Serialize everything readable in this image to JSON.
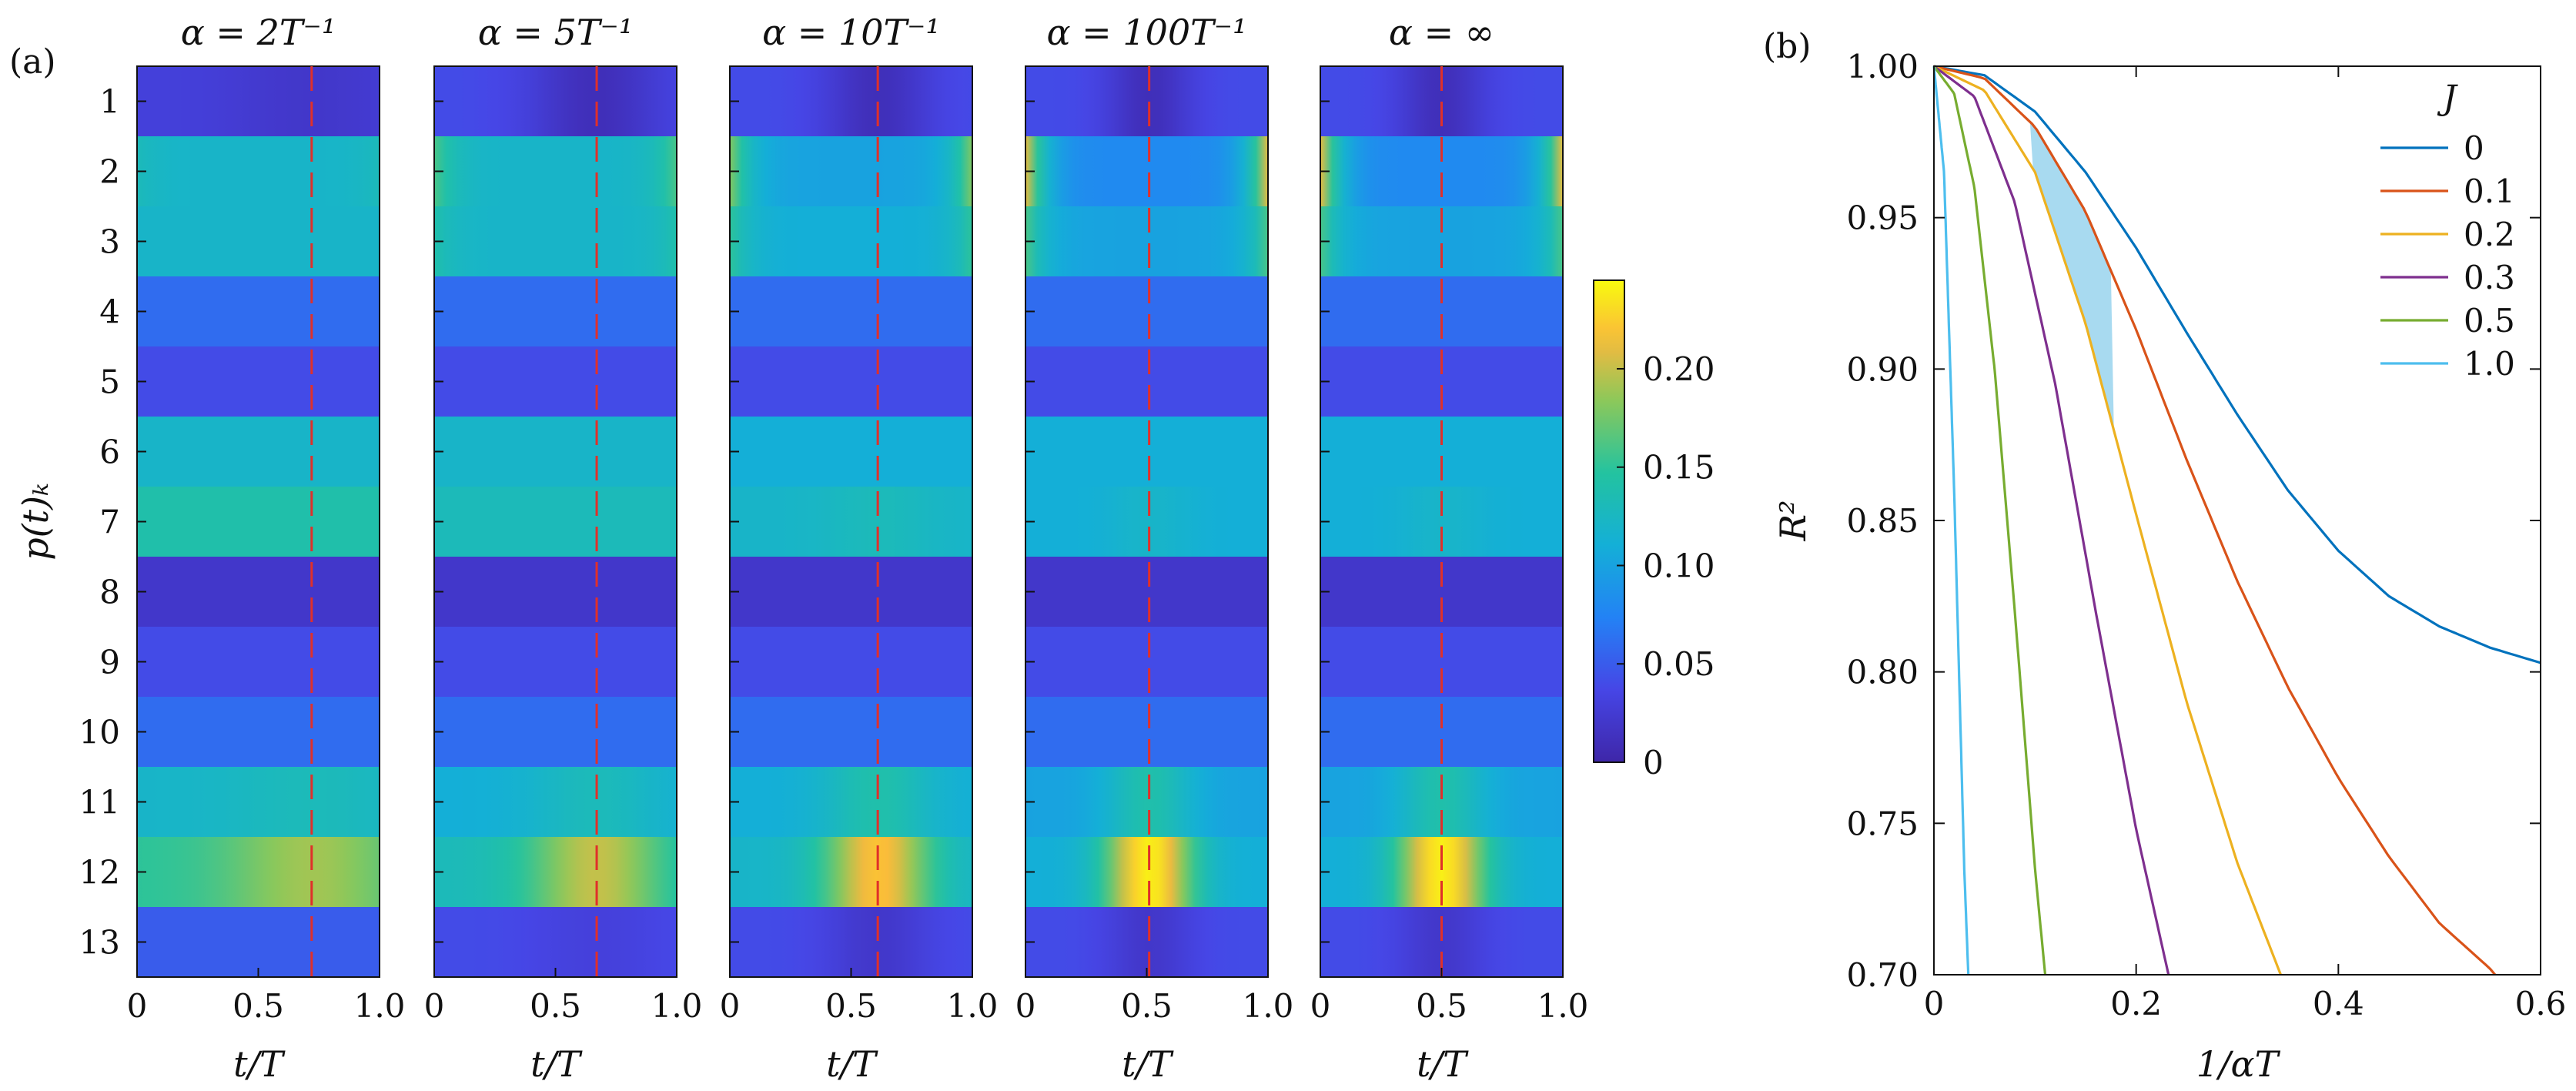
{
  "panel_labels": {
    "a": "(a)",
    "b": "(b)"
  },
  "chart_data": [
    {
      "type": "heatmap",
      "panel": "(a)",
      "title": "α = 2T⁻¹",
      "xlabel": "t/T",
      "ylabel": "p(t)ₖ",
      "xticks": [
        "0",
        "0.5",
        "1.0"
      ],
      "yticks": [
        "1",
        "2",
        "3",
        "4",
        "5",
        "6",
        "7",
        "8",
        "9",
        "10",
        "11",
        "12",
        "13"
      ],
      "dashed_line_x": 0.72,
      "row_base": [
        0.03,
        0.12,
        0.12,
        0.06,
        0.04,
        0.12,
        0.14,
        0.02,
        0.04,
        0.06,
        0.12,
        0.15,
        0.05
      ],
      "row_amp": [
        -0.01,
        0.01,
        0.0,
        0.0,
        0.0,
        0.0,
        0.0,
        0.0,
        0.0,
        0.0,
        0.01,
        0.04,
        0.0
      ],
      "center": 0.72,
      "width": 0.35
    },
    {
      "type": "heatmap",
      "title": "α = 5T⁻¹",
      "xlabel": "t/T",
      "xticks": [
        "0",
        "0.5",
        "1.0"
      ],
      "dashed_line_x": 0.67,
      "row_base": [
        0.04,
        0.12,
        0.12,
        0.06,
        0.04,
        0.12,
        0.13,
        0.02,
        0.04,
        0.06,
        0.11,
        0.13,
        0.04
      ],
      "row_amp": [
        -0.03,
        0.04,
        0.02,
        0.0,
        0.0,
        0.0,
        0.0,
        0.0,
        0.0,
        0.0,
        0.02,
        0.07,
        -0.01
      ],
      "center": 0.67,
      "width": 0.28
    },
    {
      "type": "heatmap",
      "title": "α = 10T⁻¹",
      "xlabel": "t/T",
      "xticks": [
        "0",
        "0.5",
        "1.0"
      ],
      "dashed_line_x": 0.61,
      "row_base": [
        0.04,
        0.1,
        0.11,
        0.06,
        0.04,
        0.11,
        0.12,
        0.02,
        0.04,
        0.06,
        0.11,
        0.12,
        0.04
      ],
      "row_amp": [
        -0.03,
        0.08,
        0.04,
        0.0,
        0.0,
        0.0,
        0.01,
        0.0,
        0.0,
        0.0,
        0.03,
        0.1,
        -0.02
      ],
      "center": 0.61,
      "width": 0.22
    },
    {
      "type": "heatmap",
      "title": "α = 100T⁻¹",
      "xlabel": "t/T",
      "xticks": [
        "0",
        "0.5",
        "1.0"
      ],
      "dashed_line_x": 0.51,
      "row_base": [
        0.04,
        0.08,
        0.1,
        0.06,
        0.04,
        0.11,
        0.11,
        0.02,
        0.04,
        0.06,
        0.1,
        0.11,
        0.04
      ],
      "row_amp": [
        -0.03,
        0.13,
        0.06,
        0.0,
        0.0,
        0.0,
        0.01,
        0.0,
        0.0,
        0.0,
        0.04,
        0.13,
        -0.02
      ],
      "center": 0.51,
      "width": 0.18
    },
    {
      "type": "heatmap",
      "title": "α = ∞",
      "xlabel": "t/T",
      "xticks": [
        "0",
        "0.5",
        "1.0"
      ],
      "dashed_line_x": 0.5,
      "row_base": [
        0.04,
        0.08,
        0.1,
        0.06,
        0.04,
        0.11,
        0.11,
        0.02,
        0.04,
        0.06,
        0.1,
        0.11,
        0.04
      ],
      "row_amp": [
        -0.03,
        0.13,
        0.06,
        0.0,
        0.0,
        0.0,
        0.01,
        0.0,
        0.0,
        0.0,
        0.04,
        0.13,
        -0.02
      ],
      "center": 0.5,
      "width": 0.18
    },
    {
      "type": "colorbar",
      "range": [
        0,
        0.245
      ],
      "ticks": [
        "0",
        "0.05",
        "0.10",
        "0.15",
        "0.20"
      ],
      "tick_values": [
        0,
        0.05,
        0.1,
        0.15,
        0.2
      ]
    },
    {
      "type": "line",
      "panel": "(b)",
      "xlabel": "1/αT",
      "ylabel": "R²",
      "xlim": [
        0,
        0.6
      ],
      "ylim": [
        0.7,
        1.0
      ],
      "xticks": [
        "0",
        "0.2",
        "0.4",
        "0.6"
      ],
      "xtick_values": [
        0,
        0.2,
        0.4,
        0.6
      ],
      "yticks": [
        "0.70",
        "0.75",
        "0.80",
        "0.85",
        "0.90",
        "0.95",
        "1.00"
      ],
      "ytick_values": [
        0.7,
        0.75,
        0.8,
        0.85,
        0.9,
        0.95,
        1.0
      ],
      "legend_title": "J",
      "legend_position": "top-right",
      "series": [
        {
          "name": "0",
          "color": "#0072bd",
          "x": [
            0,
            0.05,
            0.1,
            0.15,
            0.2,
            0.25,
            0.3,
            0.35,
            0.4,
            0.45,
            0.5,
            0.55,
            0.6
          ],
          "y": [
            1.0,
            0.997,
            0.985,
            0.965,
            0.94,
            0.912,
            0.885,
            0.86,
            0.84,
            0.825,
            0.815,
            0.808,
            0.803
          ]
        },
        {
          "name": "0.1",
          "color": "#d95319",
          "x": [
            0,
            0.05,
            0.1,
            0.15,
            0.2,
            0.25,
            0.3,
            0.35,
            0.4,
            0.45,
            0.5,
            0.55,
            0.555
          ],
          "y": [
            1.0,
            0.996,
            0.98,
            0.952,
            0.913,
            0.87,
            0.83,
            0.795,
            0.765,
            0.739,
            0.717,
            0.702,
            0.7
          ]
        },
        {
          "name": "0.2",
          "color": "#edb120",
          "x": [
            0,
            0.05,
            0.1,
            0.15,
            0.2,
            0.25,
            0.3,
            0.343
          ],
          "y": [
            1.0,
            0.992,
            0.965,
            0.915,
            0.852,
            0.79,
            0.737,
            0.7
          ]
        },
        {
          "name": "0.3",
          "color": "#7e2f8e",
          "x": [
            0,
            0.04,
            0.08,
            0.12,
            0.16,
            0.2,
            0.232
          ],
          "y": [
            1.0,
            0.99,
            0.955,
            0.895,
            0.82,
            0.748,
            0.7
          ]
        },
        {
          "name": "0.5",
          "color": "#77ac30",
          "x": [
            0,
            0.02,
            0.04,
            0.06,
            0.08,
            0.1,
            0.11
          ],
          "y": [
            1.0,
            0.991,
            0.96,
            0.9,
            0.82,
            0.735,
            0.7
          ]
        },
        {
          "name": "1.0",
          "color": "#4dbeee",
          "x": [
            0,
            0.01,
            0.02,
            0.03,
            0.034
          ],
          "y": [
            1.0,
            0.965,
            0.86,
            0.735,
            0.7
          ]
        }
      ],
      "shaded_band": {
        "color": "#a8daf0",
        "x_range": [
          0.095,
          0.178
        ]
      }
    }
  ]
}
